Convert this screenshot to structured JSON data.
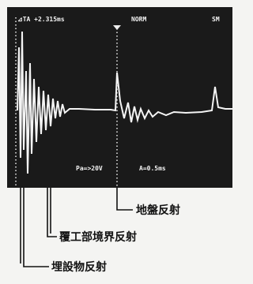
{
  "screen": {
    "readout": "⊿TA +2.315ms",
    "mode": "NORM",
    "right_label": "SM",
    "voltage": "Pa=>20V",
    "timebase": "A=0.5ms"
  },
  "annotations": {
    "ground": "地盤反射",
    "lining": "覆工部境界反射",
    "buried": "埋設物反射"
  }
}
